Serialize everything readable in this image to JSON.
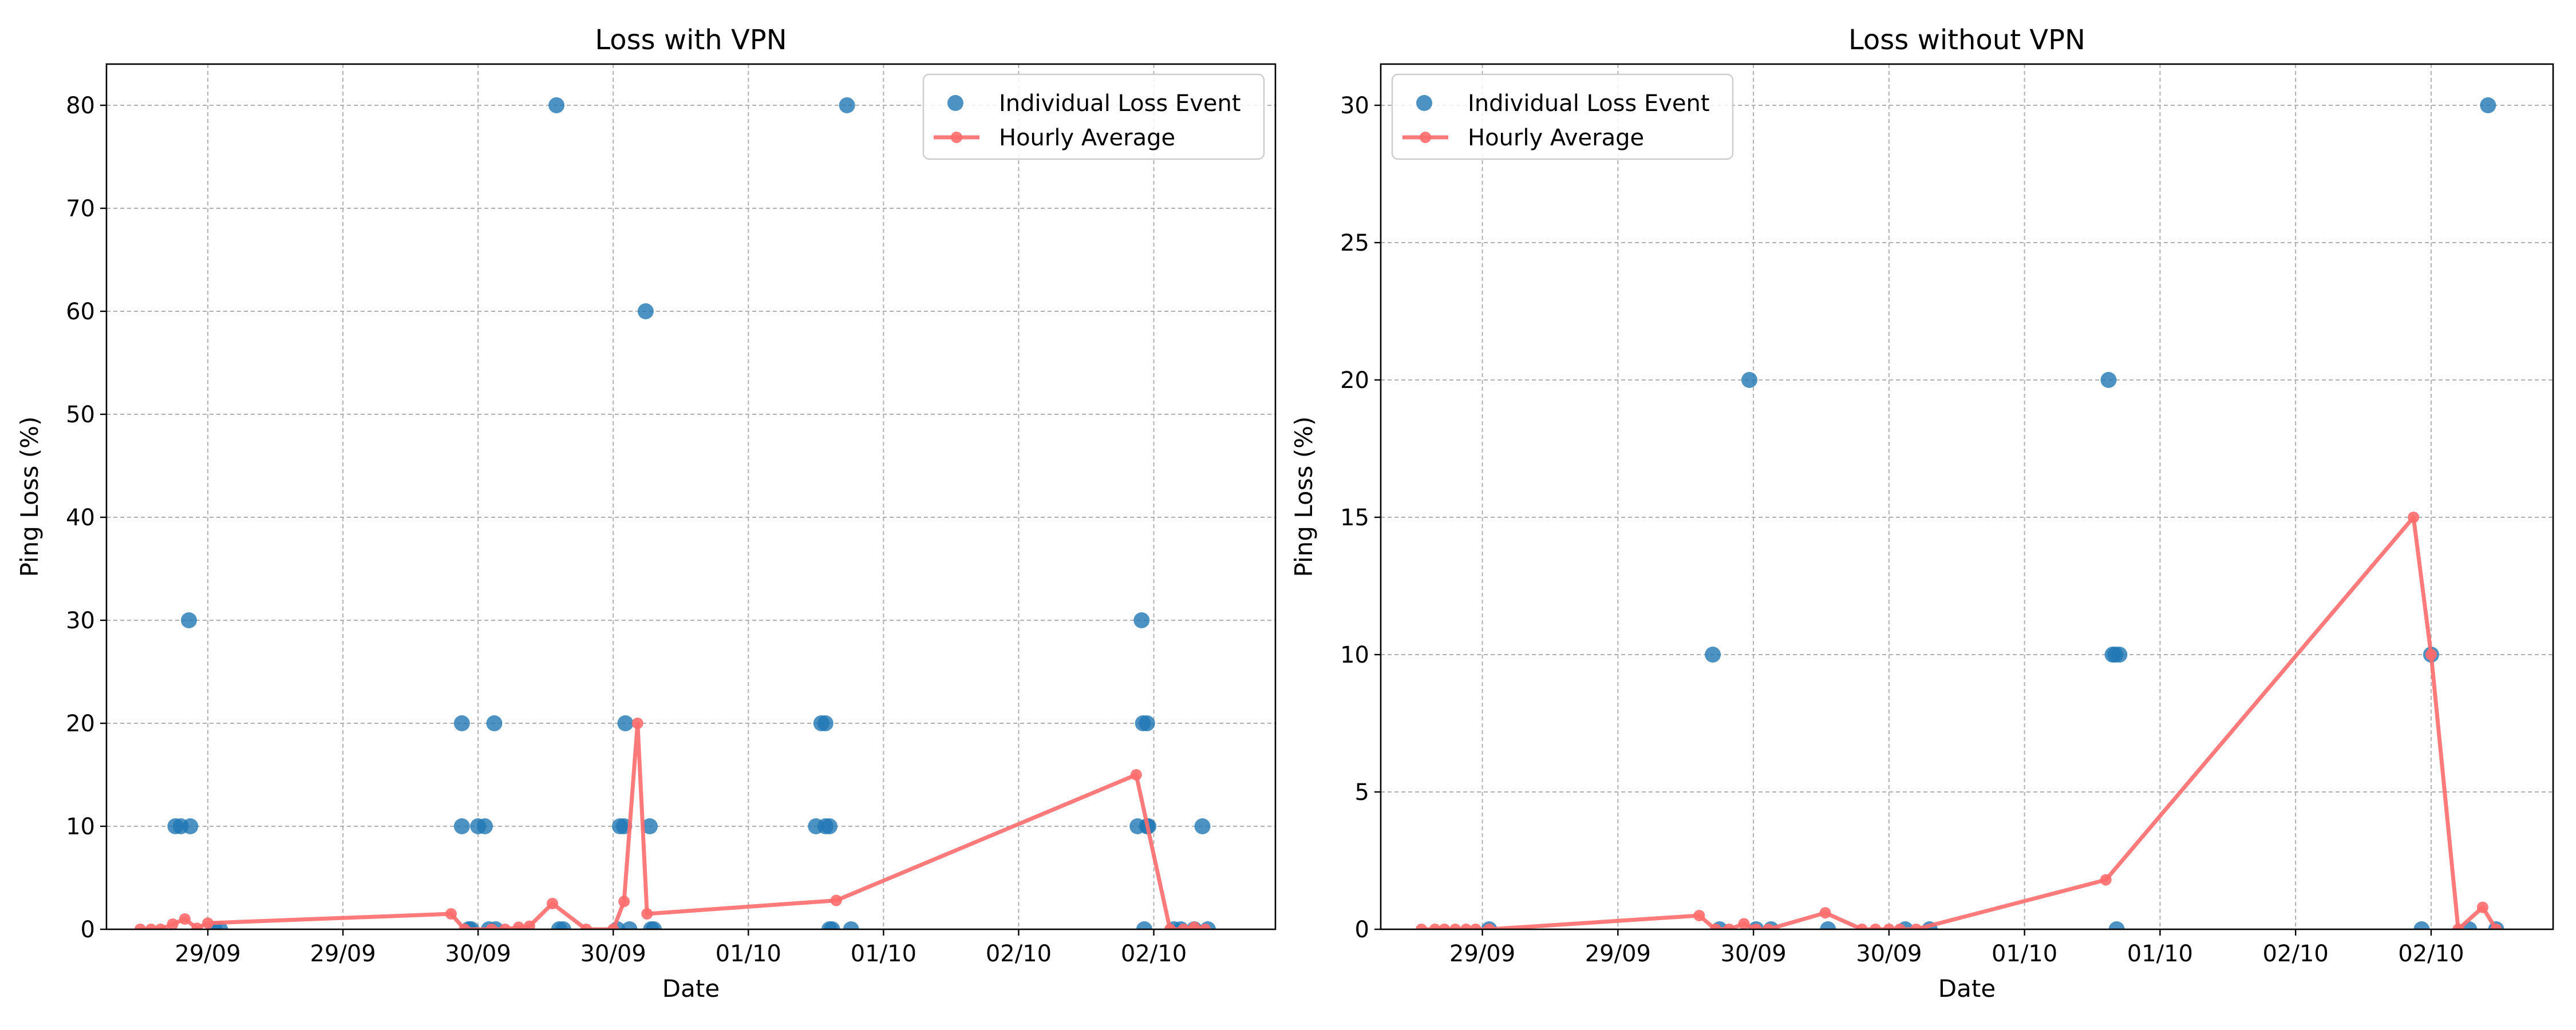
{
  "chart_data": [
    {
      "type": "scatter",
      "title": "Loss with VPN",
      "xlabel": "Date",
      "ylabel": "Ping Loss (%)",
      "x_range": [
        -0.75,
        7.9
      ],
      "ylim": [
        0,
        84
      ],
      "x_ticks": [
        {
          "pos": 0,
          "label": "29/09"
        },
        {
          "pos": 1,
          "label": "29/09"
        },
        {
          "pos": 2,
          "label": "30/09"
        },
        {
          "pos": 3,
          "label": "30/09"
        },
        {
          "pos": 4,
          "label": "01/10"
        },
        {
          "pos": 5,
          "label": "01/10"
        },
        {
          "pos": 6,
          "label": "02/10"
        },
        {
          "pos": 7,
          "label": "02/10"
        }
      ],
      "y_ticks": [
        0,
        10,
        20,
        30,
        40,
        50,
        60,
        70,
        80
      ],
      "grid": true,
      "legend": {
        "position": "top-right",
        "entries": [
          "Individual Loss Event",
          "Hourly Average"
        ]
      },
      "series": [
        {
          "name": "Individual Loss Event",
          "kind": "scatter",
          "color": "#1f77b4",
          "points": [
            [
              -0.24,
              10
            ],
            [
              -0.2,
              10
            ],
            [
              -0.14,
              30
            ],
            [
              -0.13,
              10
            ],
            [
              0.05,
              0
            ],
            [
              0.09,
              0
            ],
            [
              1.88,
              20
            ],
            [
              1.88,
              10
            ],
            [
              1.93,
              0
            ],
            [
              1.95,
              0
            ],
            [
              2.0,
              10
            ],
            [
              2.05,
              10
            ],
            [
              2.08,
              0
            ],
            [
              2.12,
              20
            ],
            [
              2.13,
              0
            ],
            [
              2.58,
              80
            ],
            [
              2.6,
              0
            ],
            [
              2.63,
              0
            ],
            [
              3.03,
              0
            ],
            [
              3.05,
              10
            ],
            [
              3.08,
              10
            ],
            [
              3.09,
              20
            ],
            [
              3.12,
              0
            ],
            [
              3.24,
              60
            ],
            [
              3.27,
              10
            ],
            [
              3.28,
              0
            ],
            [
              3.3,
              0
            ],
            [
              4.5,
              10
            ],
            [
              4.54,
              20
            ],
            [
              4.57,
              20
            ],
            [
              4.57,
              10
            ],
            [
              4.6,
              10
            ],
            [
              4.6,
              0
            ],
            [
              4.62,
              0
            ],
            [
              4.73,
              80
            ],
            [
              4.76,
              0
            ],
            [
              6.88,
              10
            ],
            [
              6.91,
              30
            ],
            [
              6.92,
              20
            ],
            [
              6.95,
              20
            ],
            [
              6.95,
              10
            ],
            [
              6.96,
              10
            ],
            [
              6.93,
              0
            ],
            [
              7.15,
              0
            ],
            [
              7.2,
              0
            ],
            [
              7.3,
              0
            ],
            [
              7.36,
              10
            ],
            [
              7.4,
              0
            ]
          ]
        },
        {
          "name": "Hourly Average",
          "kind": "line",
          "color": "#ff6b6b",
          "points": [
            [
              -0.5,
              0
            ],
            [
              -0.42,
              0
            ],
            [
              -0.35,
              0
            ],
            [
              -0.26,
              0.5
            ],
            [
              -0.17,
              1.0
            ],
            [
              -0.08,
              0.1
            ],
            [
              0.0,
              0.6
            ],
            [
              1.8,
              1.5
            ],
            [
              1.9,
              0
            ],
            [
              2.1,
              0
            ],
            [
              2.2,
              0
            ],
            [
              2.3,
              0.2
            ],
            [
              2.38,
              0.3
            ],
            [
              2.55,
              2.5
            ],
            [
              2.8,
              0
            ],
            [
              3.0,
              0
            ],
            [
              3.08,
              2.7
            ],
            [
              3.18,
              20
            ],
            [
              3.25,
              1.5
            ],
            [
              4.65,
              2.8
            ],
            [
              6.87,
              15
            ],
            [
              7.12,
              0
            ],
            [
              7.22,
              0
            ],
            [
              7.3,
              0.2
            ],
            [
              7.38,
              0
            ]
          ]
        }
      ]
    },
    {
      "type": "scatter",
      "title": "Loss without VPN",
      "xlabel": "Date",
      "ylabel": "Ping Loss (%)",
      "x_range": [
        -0.75,
        7.9
      ],
      "ylim": [
        0,
        31.5
      ],
      "x_ticks": [
        {
          "pos": 0,
          "label": "29/09"
        },
        {
          "pos": 1,
          "label": "29/09"
        },
        {
          "pos": 2,
          "label": "30/09"
        },
        {
          "pos": 3,
          "label": "30/09"
        },
        {
          "pos": 4,
          "label": "01/10"
        },
        {
          "pos": 5,
          "label": "01/10"
        },
        {
          "pos": 6,
          "label": "02/10"
        },
        {
          "pos": 7,
          "label": "02/10"
        }
      ],
      "y_ticks": [
        0,
        5,
        10,
        15,
        20,
        25,
        30
      ],
      "grid": true,
      "legend": {
        "position": "top-left",
        "entries": [
          "Individual Loss Event",
          "Hourly Average"
        ]
      },
      "series": [
        {
          "name": "Individual Loss Event",
          "kind": "scatter",
          "color": "#1f77b4",
          "points": [
            [
              0.05,
              0
            ],
            [
              1.7,
              10
            ],
            [
              1.75,
              0
            ],
            [
              1.97,
              20
            ],
            [
              2.02,
              0
            ],
            [
              2.13,
              0
            ],
            [
              2.55,
              0
            ],
            [
              3.12,
              0
            ],
            [
              3.3,
              0
            ],
            [
              4.62,
              20
            ],
            [
              4.65,
              10
            ],
            [
              4.67,
              10
            ],
            [
              4.7,
              10
            ],
            [
              4.68,
              0
            ],
            [
              6.93,
              0
            ],
            [
              7.0,
              10
            ],
            [
              7.28,
              0
            ],
            [
              7.42,
              30
            ],
            [
              7.48,
              0
            ]
          ]
        },
        {
          "name": "Hourly Average",
          "kind": "line",
          "color": "#ff6b6b",
          "points": [
            [
              -0.45,
              0
            ],
            [
              -0.35,
              0
            ],
            [
              -0.28,
              0
            ],
            [
              -0.2,
              0
            ],
            [
              -0.12,
              0
            ],
            [
              -0.05,
              0
            ],
            [
              0.05,
              0
            ],
            [
              1.6,
              0.5
            ],
            [
              1.72,
              0
            ],
            [
              1.82,
              0
            ],
            [
              1.93,
              0.2
            ],
            [
              2.02,
              0
            ],
            [
              2.11,
              0
            ],
            [
              2.53,
              0.6
            ],
            [
              2.8,
              0
            ],
            [
              2.9,
              0
            ],
            [
              3.0,
              0
            ],
            [
              3.08,
              0
            ],
            [
              3.2,
              0
            ],
            [
              4.6,
              1.8
            ],
            [
              6.87,
              15
            ],
            [
              7.0,
              10
            ],
            [
              7.2,
              0
            ],
            [
              7.38,
              0.8
            ],
            [
              7.48,
              0
            ]
          ]
        }
      ]
    }
  ]
}
